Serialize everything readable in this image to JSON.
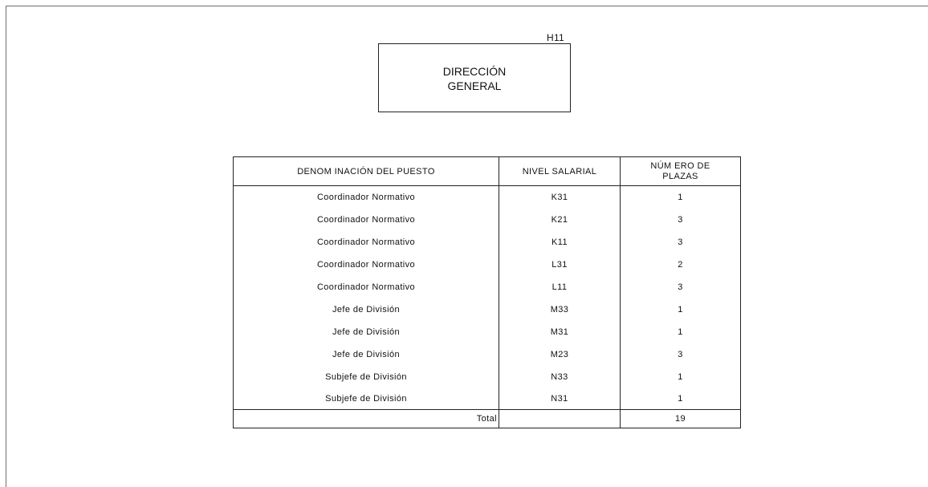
{
  "org_box": {
    "code": "H11",
    "title_line1": "DIRECCIÓN",
    "title_line2": "GENERAL"
  },
  "table": {
    "headers": {
      "position": "DENOM INACIÓN DEL PUESTO",
      "salary_level": "NIVEL SALARIAL",
      "seats_line1": "NÚM ERO DE",
      "seats_line2": "PLAZAS"
    },
    "rows": [
      {
        "position": "Coordinador Normativo",
        "level": "K31",
        "count": "1"
      },
      {
        "position": "Coordinador Normativo",
        "level": "K21",
        "count": "3"
      },
      {
        "position": "Coordinador Normativo",
        "level": "K11",
        "count": "3"
      },
      {
        "position": "Coordinador Normativo",
        "level": "L31",
        "count": "2"
      },
      {
        "position": "Coordinador Normativo",
        "level": "L11",
        "count": "3"
      },
      {
        "position": "Jefe de División",
        "level": "M33",
        "count": "1"
      },
      {
        "position": "Jefe de División",
        "level": "M31",
        "count": "1"
      },
      {
        "position": "Jefe de División",
        "level": "M23",
        "count": "3"
      },
      {
        "position": "Subjefe de División",
        "level": "N33",
        "count": "1"
      },
      {
        "position": "Subjefe de División",
        "level": "N31",
        "count": "1"
      }
    ],
    "total_label": "Total",
    "total_value": "19"
  }
}
